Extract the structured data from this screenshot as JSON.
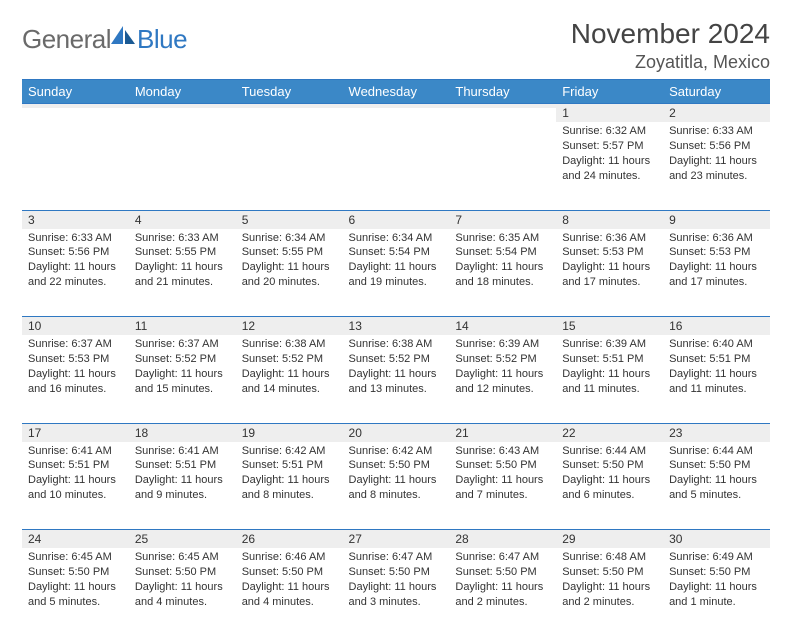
{
  "logo": {
    "general": "General",
    "blue": "Blue"
  },
  "title": {
    "month_year": "November 2024",
    "location": "Zoyatitla, Mexico"
  },
  "colors": {
    "header_bg": "#3b88c7",
    "header_text": "#ffffff",
    "border": "#2f78c2",
    "daynum_bg": "#eeeeee",
    "body_bg": "#ffffff",
    "text": "#333333",
    "logo_gray": "#6a6a6a",
    "logo_blue": "#2f78c2"
  },
  "typography": {
    "title_fontsize": 28,
    "location_fontsize": 18,
    "dayheader_fontsize": 13,
    "daynum_fontsize": 12,
    "cell_fontsize": 11
  },
  "day_headers": [
    "Sunday",
    "Monday",
    "Tuesday",
    "Wednesday",
    "Thursday",
    "Friday",
    "Saturday"
  ],
  "weeks": [
    [
      null,
      null,
      null,
      null,
      null,
      {
        "n": "1",
        "sunrise": "6:32 AM",
        "sunset": "5:57 PM",
        "daylight": "11 hours and 24 minutes."
      },
      {
        "n": "2",
        "sunrise": "6:33 AM",
        "sunset": "5:56 PM",
        "daylight": "11 hours and 23 minutes."
      }
    ],
    [
      {
        "n": "3",
        "sunrise": "6:33 AM",
        "sunset": "5:56 PM",
        "daylight": "11 hours and 22 minutes."
      },
      {
        "n": "4",
        "sunrise": "6:33 AM",
        "sunset": "5:55 PM",
        "daylight": "11 hours and 21 minutes."
      },
      {
        "n": "5",
        "sunrise": "6:34 AM",
        "sunset": "5:55 PM",
        "daylight": "11 hours and 20 minutes."
      },
      {
        "n": "6",
        "sunrise": "6:34 AM",
        "sunset": "5:54 PM",
        "daylight": "11 hours and 19 minutes."
      },
      {
        "n": "7",
        "sunrise": "6:35 AM",
        "sunset": "5:54 PM",
        "daylight": "11 hours and 18 minutes."
      },
      {
        "n": "8",
        "sunrise": "6:36 AM",
        "sunset": "5:53 PM",
        "daylight": "11 hours and 17 minutes."
      },
      {
        "n": "9",
        "sunrise": "6:36 AM",
        "sunset": "5:53 PM",
        "daylight": "11 hours and 17 minutes."
      }
    ],
    [
      {
        "n": "10",
        "sunrise": "6:37 AM",
        "sunset": "5:53 PM",
        "daylight": "11 hours and 16 minutes."
      },
      {
        "n": "11",
        "sunrise": "6:37 AM",
        "sunset": "5:52 PM",
        "daylight": "11 hours and 15 minutes."
      },
      {
        "n": "12",
        "sunrise": "6:38 AM",
        "sunset": "5:52 PM",
        "daylight": "11 hours and 14 minutes."
      },
      {
        "n": "13",
        "sunrise": "6:38 AM",
        "sunset": "5:52 PM",
        "daylight": "11 hours and 13 minutes."
      },
      {
        "n": "14",
        "sunrise": "6:39 AM",
        "sunset": "5:52 PM",
        "daylight": "11 hours and 12 minutes."
      },
      {
        "n": "15",
        "sunrise": "6:39 AM",
        "sunset": "5:51 PM",
        "daylight": "11 hours and 11 minutes."
      },
      {
        "n": "16",
        "sunrise": "6:40 AM",
        "sunset": "5:51 PM",
        "daylight": "11 hours and 11 minutes."
      }
    ],
    [
      {
        "n": "17",
        "sunrise": "6:41 AM",
        "sunset": "5:51 PM",
        "daylight": "11 hours and 10 minutes."
      },
      {
        "n": "18",
        "sunrise": "6:41 AM",
        "sunset": "5:51 PM",
        "daylight": "11 hours and 9 minutes."
      },
      {
        "n": "19",
        "sunrise": "6:42 AM",
        "sunset": "5:51 PM",
        "daylight": "11 hours and 8 minutes."
      },
      {
        "n": "20",
        "sunrise": "6:42 AM",
        "sunset": "5:50 PM",
        "daylight": "11 hours and 8 minutes."
      },
      {
        "n": "21",
        "sunrise": "6:43 AM",
        "sunset": "5:50 PM",
        "daylight": "11 hours and 7 minutes."
      },
      {
        "n": "22",
        "sunrise": "6:44 AM",
        "sunset": "5:50 PM",
        "daylight": "11 hours and 6 minutes."
      },
      {
        "n": "23",
        "sunrise": "6:44 AM",
        "sunset": "5:50 PM",
        "daylight": "11 hours and 5 minutes."
      }
    ],
    [
      {
        "n": "24",
        "sunrise": "6:45 AM",
        "sunset": "5:50 PM",
        "daylight": "11 hours and 5 minutes."
      },
      {
        "n": "25",
        "sunrise": "6:45 AM",
        "sunset": "5:50 PM",
        "daylight": "11 hours and 4 minutes."
      },
      {
        "n": "26",
        "sunrise": "6:46 AM",
        "sunset": "5:50 PM",
        "daylight": "11 hours and 4 minutes."
      },
      {
        "n": "27",
        "sunrise": "6:47 AM",
        "sunset": "5:50 PM",
        "daylight": "11 hours and 3 minutes."
      },
      {
        "n": "28",
        "sunrise": "6:47 AM",
        "sunset": "5:50 PM",
        "daylight": "11 hours and 2 minutes."
      },
      {
        "n": "29",
        "sunrise": "6:48 AM",
        "sunset": "5:50 PM",
        "daylight": "11 hours and 2 minutes."
      },
      {
        "n": "30",
        "sunrise": "6:49 AM",
        "sunset": "5:50 PM",
        "daylight": "11 hours and 1 minute."
      }
    ]
  ],
  "labels": {
    "sunrise": "Sunrise:",
    "sunset": "Sunset:",
    "daylight": "Daylight:"
  }
}
